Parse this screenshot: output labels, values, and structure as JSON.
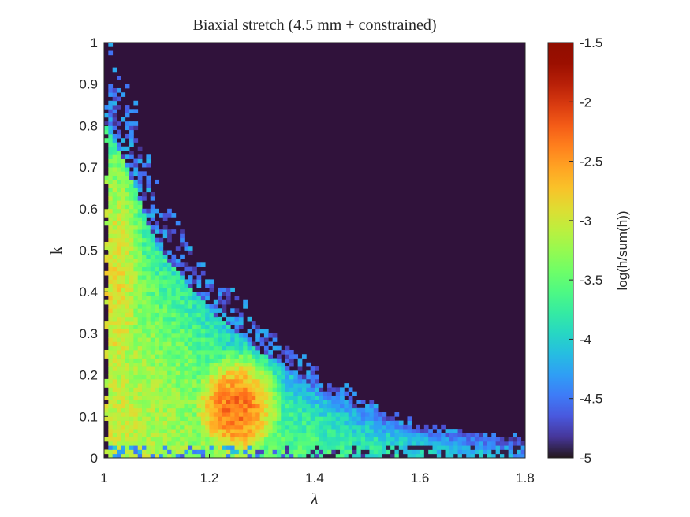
{
  "chart_data": {
    "type": "heatmap",
    "title": "Biaxial stretch (4.5 mm + constrained)",
    "xlabel": "λ",
    "ylabel": "k",
    "colorbar_label": "log(h/sum(h))",
    "xlim": [
      1,
      1.8
    ],
    "ylim": [
      0,
      1
    ],
    "clim": [
      -5,
      -1.5
    ],
    "x_ticks": [
      1,
      1.2,
      1.4,
      1.6,
      1.8
    ],
    "x_tick_labels": [
      "1",
      "1.2",
      "1.4",
      "1.6",
      "1.8"
    ],
    "y_ticks": [
      0,
      0.1,
      0.2,
      0.3,
      0.4,
      0.5,
      0.6,
      0.7,
      0.8,
      0.9,
      1
    ],
    "y_tick_labels": [
      "0",
      "0.1",
      "0.2",
      "0.3",
      "0.4",
      "0.5",
      "0.6",
      "0.7",
      "0.8",
      "0.9",
      "1"
    ],
    "c_ticks": [
      -5,
      -4.5,
      -4,
      -3.5,
      -3,
      -2.5,
      -2,
      -1.5
    ],
    "c_tick_labels": [
      "-5",
      "-4.5",
      "-4",
      "-3.5",
      "-3",
      "-2.5",
      "-2",
      "-1.5"
    ],
    "colormap": "turbo",
    "background_color": "#30123b",
    "bins": [
      100,
      100
    ],
    "density_model": {
      "description": "approximate histogram density; peak near λ=1.25, k=0.12",
      "ridge_points": [
        [
          1.0,
          0.95
        ],
        [
          1.05,
          0.8
        ],
        [
          1.1,
          0.6
        ],
        [
          1.2,
          0.42
        ],
        [
          1.3,
          0.3
        ],
        [
          1.4,
          0.2
        ],
        [
          1.5,
          0.13
        ],
        [
          1.6,
          0.08
        ],
        [
          1.8,
          0.05
        ]
      ],
      "peak": {
        "x": 1.25,
        "y": 0.12,
        "value": -2.3
      },
      "secondary_peak": {
        "x": 1.02,
        "y": 0.4,
        "value": -2.9
      },
      "min_value": -5
    }
  }
}
